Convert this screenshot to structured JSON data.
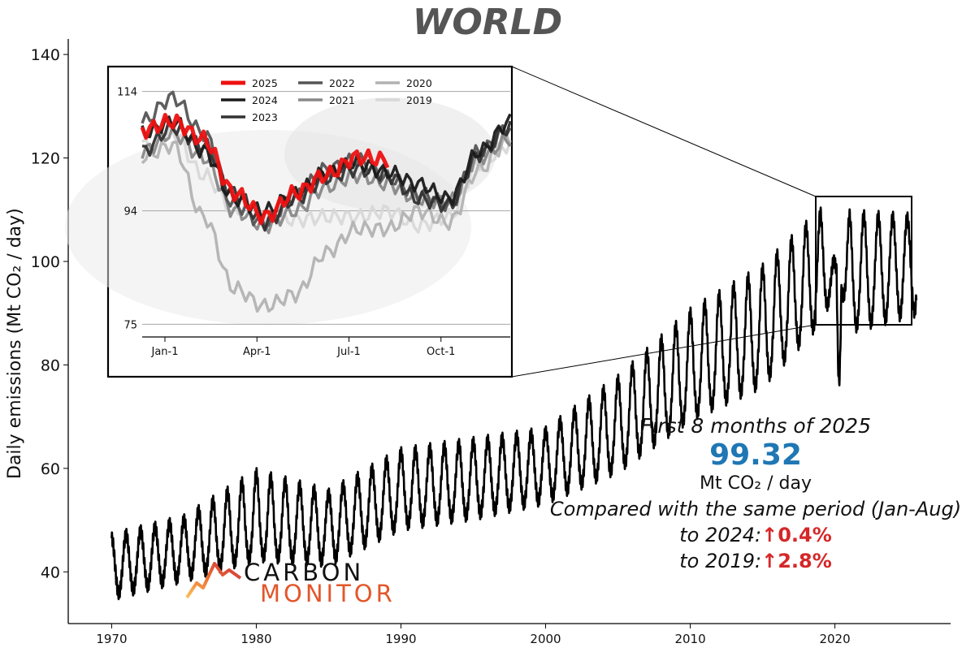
{
  "chart_data": [
    {
      "type": "line",
      "title": "WORLD",
      "ylabel": "Daily emissions (Mt CO₂ / day)",
      "xlabel": "",
      "xlim": [
        1967,
        2028
      ],
      "ylim": [
        30,
        143
      ],
      "x_ticks": [
        "1970",
        "1980",
        "1990",
        "2000",
        "2010",
        "2020"
      ],
      "y_ticks": [
        "40",
        "60",
        "80",
        "100",
        "120",
        "140"
      ],
      "series": [
        {
          "color": "#000000",
          "description_points": {
            "year": [
              1970,
              1975,
              1980,
              1985,
              1990,
              1995,
              2000,
              2005,
              2010,
              2015,
              2019,
              2020.3,
              2021,
              2025.6
            ],
            "annual_mean": [
              40.5,
              44,
              49,
              48,
              55,
              57,
              60,
              67,
              78,
              85.5,
              97.5,
              76.5,
              96,
              99.3
            ],
            "seasonal_amplitude_low": [
              5,
              5,
              6,
              6,
              6,
              6,
              6,
              7,
              8,
              9,
              9,
              0,
              9,
              9
            ],
            "seasonal_amplitude_high": [
              6,
              6,
              10,
              7,
              8,
              8,
              7,
              10,
              12,
              13,
              12,
              0,
              13,
              9
            ]
          }
        }
      ],
      "grid": false
    },
    {
      "type": "line",
      "title": "",
      "x_ticks": [
        "Jan-1",
        "Apr-1",
        "Jul-1",
        "Oct-1"
      ],
      "y_ticks": [
        "75",
        "94",
        "114"
      ],
      "ylim": [
        73,
        116
      ],
      "legend_placement": "top",
      "series": [
        {
          "name": "2025",
          "color": "#ee1111",
          "monthly": [
            107.5,
            109,
            106,
            97,
            93,
            97,
            100,
            103,
            102.5
          ]
        },
        {
          "name": "2024",
          "color": "#1a1a1a",
          "monthly": [
            107,
            109,
            104,
            96,
            94,
            97,
            100.5,
            102,
            100.5,
            98.5,
            96,
            104,
            109
          ]
        },
        {
          "name": "2023",
          "color": "#333333",
          "monthly": [
            104,
            108,
            105,
            97,
            92,
            96,
            99.5,
            101,
            100,
            96,
            95,
            103.5,
            108
          ]
        },
        {
          "name": "2022",
          "color": "#555555",
          "monthly": [
            109,
            113,
            107,
            95,
            92,
            96.5,
            101,
            102.5,
            99.5,
            97,
            95,
            104,
            108
          ]
        },
        {
          "name": "2021",
          "color": "#888888",
          "monthly": [
            104,
            107,
            103,
            94,
            91.5,
            94,
            98,
            100,
            98.5,
            96,
            95.5,
            103,
            106
          ]
        },
        {
          "name": "2020",
          "color": "#b2b2b2",
          "monthly": [
            103,
            105,
            93,
            81,
            78,
            80,
            87,
            91,
            91,
            94,
            92,
            101,
            106
          ]
        },
        {
          "name": "2019",
          "color": "#d8d8d8",
          "monthly": [
            105,
            107,
            100,
            94.5,
            93,
            92.5,
            93,
            93,
            94,
            91.5,
            93,
            102,
            105
          ]
        }
      ]
    }
  ],
  "summary": {
    "line1": "First 8 months of 2025",
    "value": "99.32",
    "unit": "Mt CO₂ / day",
    "compare": "Compared with the same period (Jan-Aug)",
    "row2024_label": "to 2024:",
    "row2024_change": "↑0.4%",
    "row2019_label": "to 2019:",
    "row2019_change": "↑2.8%"
  },
  "logo": {
    "word1": "CARBON",
    "word2": "MONITOR"
  }
}
